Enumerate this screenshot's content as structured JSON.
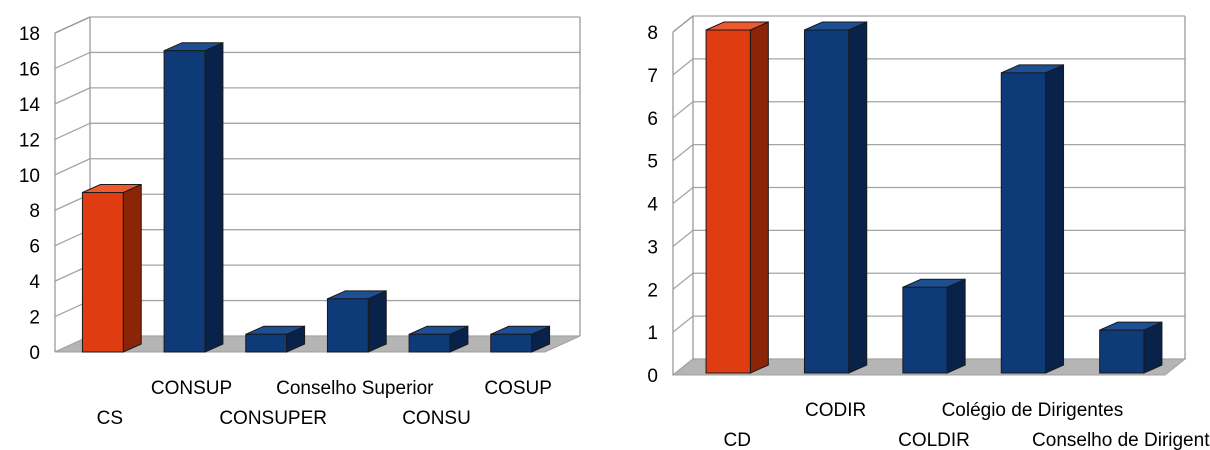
{
  "chart_data": [
    {
      "type": "bar",
      "categories": [
        "CS",
        "CONSUP",
        "CONSUPER",
        "Conselho Superior",
        "CONSU",
        "COSUP"
      ],
      "values": [
        9,
        17,
        1,
        3,
        1,
        1
      ],
      "highlight": [
        true,
        false,
        false,
        false,
        false,
        false
      ],
      "yticks": [
        0,
        2,
        4,
        6,
        8,
        10,
        12,
        14,
        16,
        18
      ],
      "ylim": [
        0,
        18
      ],
      "grid": true,
      "title": "",
      "xlabel": "",
      "ylabel": ""
    },
    {
      "type": "bar",
      "categories": [
        "CD",
        "CODIR",
        "COLDIR",
        "Colégio de Dirigentes",
        "Conselho de Dirigentes"
      ],
      "values": [
        8,
        8,
        2,
        7,
        1
      ],
      "highlight": [
        true,
        false,
        false,
        false,
        false
      ],
      "yticks": [
        0,
        1,
        2,
        3,
        4,
        5,
        6,
        7,
        8
      ],
      "ylim": [
        0,
        8
      ],
      "grid": true,
      "title": "",
      "xlabel": "",
      "ylabel": ""
    }
  ],
  "colors": {
    "highlight_front": "#e03c12",
    "highlight_side": "#8a2508",
    "highlight_top": "#ee5a2e",
    "bar_front": "#0f3a78",
    "bar_side": "#08224a",
    "bar_top": "#1d4f95",
    "floor": "#b5b5b5",
    "wall_line": "#9a9a9a",
    "grid": "#a5a5a5"
  }
}
